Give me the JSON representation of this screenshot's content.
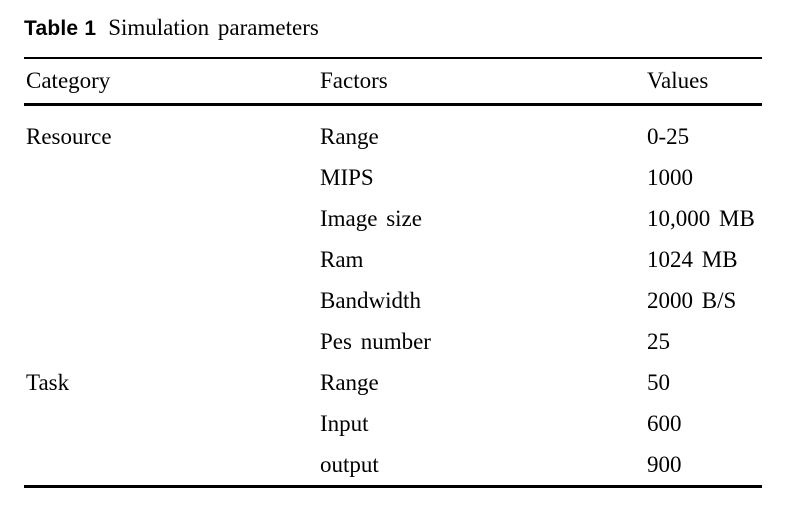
{
  "page": {
    "background": "#ffffff",
    "text_color": "#000000",
    "rule_color": "#000000"
  },
  "table": {
    "label": "Table 1",
    "caption": "Simulation parameters",
    "columns": [
      "Category",
      "Factors",
      "Values"
    ],
    "rows": [
      {
        "category": "Resource",
        "factor": "Range",
        "value": "0-25"
      },
      {
        "category": "",
        "factor": "MIPS",
        "value": "1000"
      },
      {
        "category": "",
        "factor": "Image size",
        "value": "10,000 MB"
      },
      {
        "category": "",
        "factor": "Ram",
        "value": "1024 MB"
      },
      {
        "category": "",
        "factor": "Bandwidth",
        "value": "2000 B/S"
      },
      {
        "category": "",
        "factor": "Pes number",
        "value": "25"
      },
      {
        "category": "Task",
        "factor": "Range",
        "value": "50"
      },
      {
        "category": "",
        "factor": "Input",
        "value": "600"
      },
      {
        "category": "",
        "factor": "output",
        "value": "900"
      }
    ]
  }
}
